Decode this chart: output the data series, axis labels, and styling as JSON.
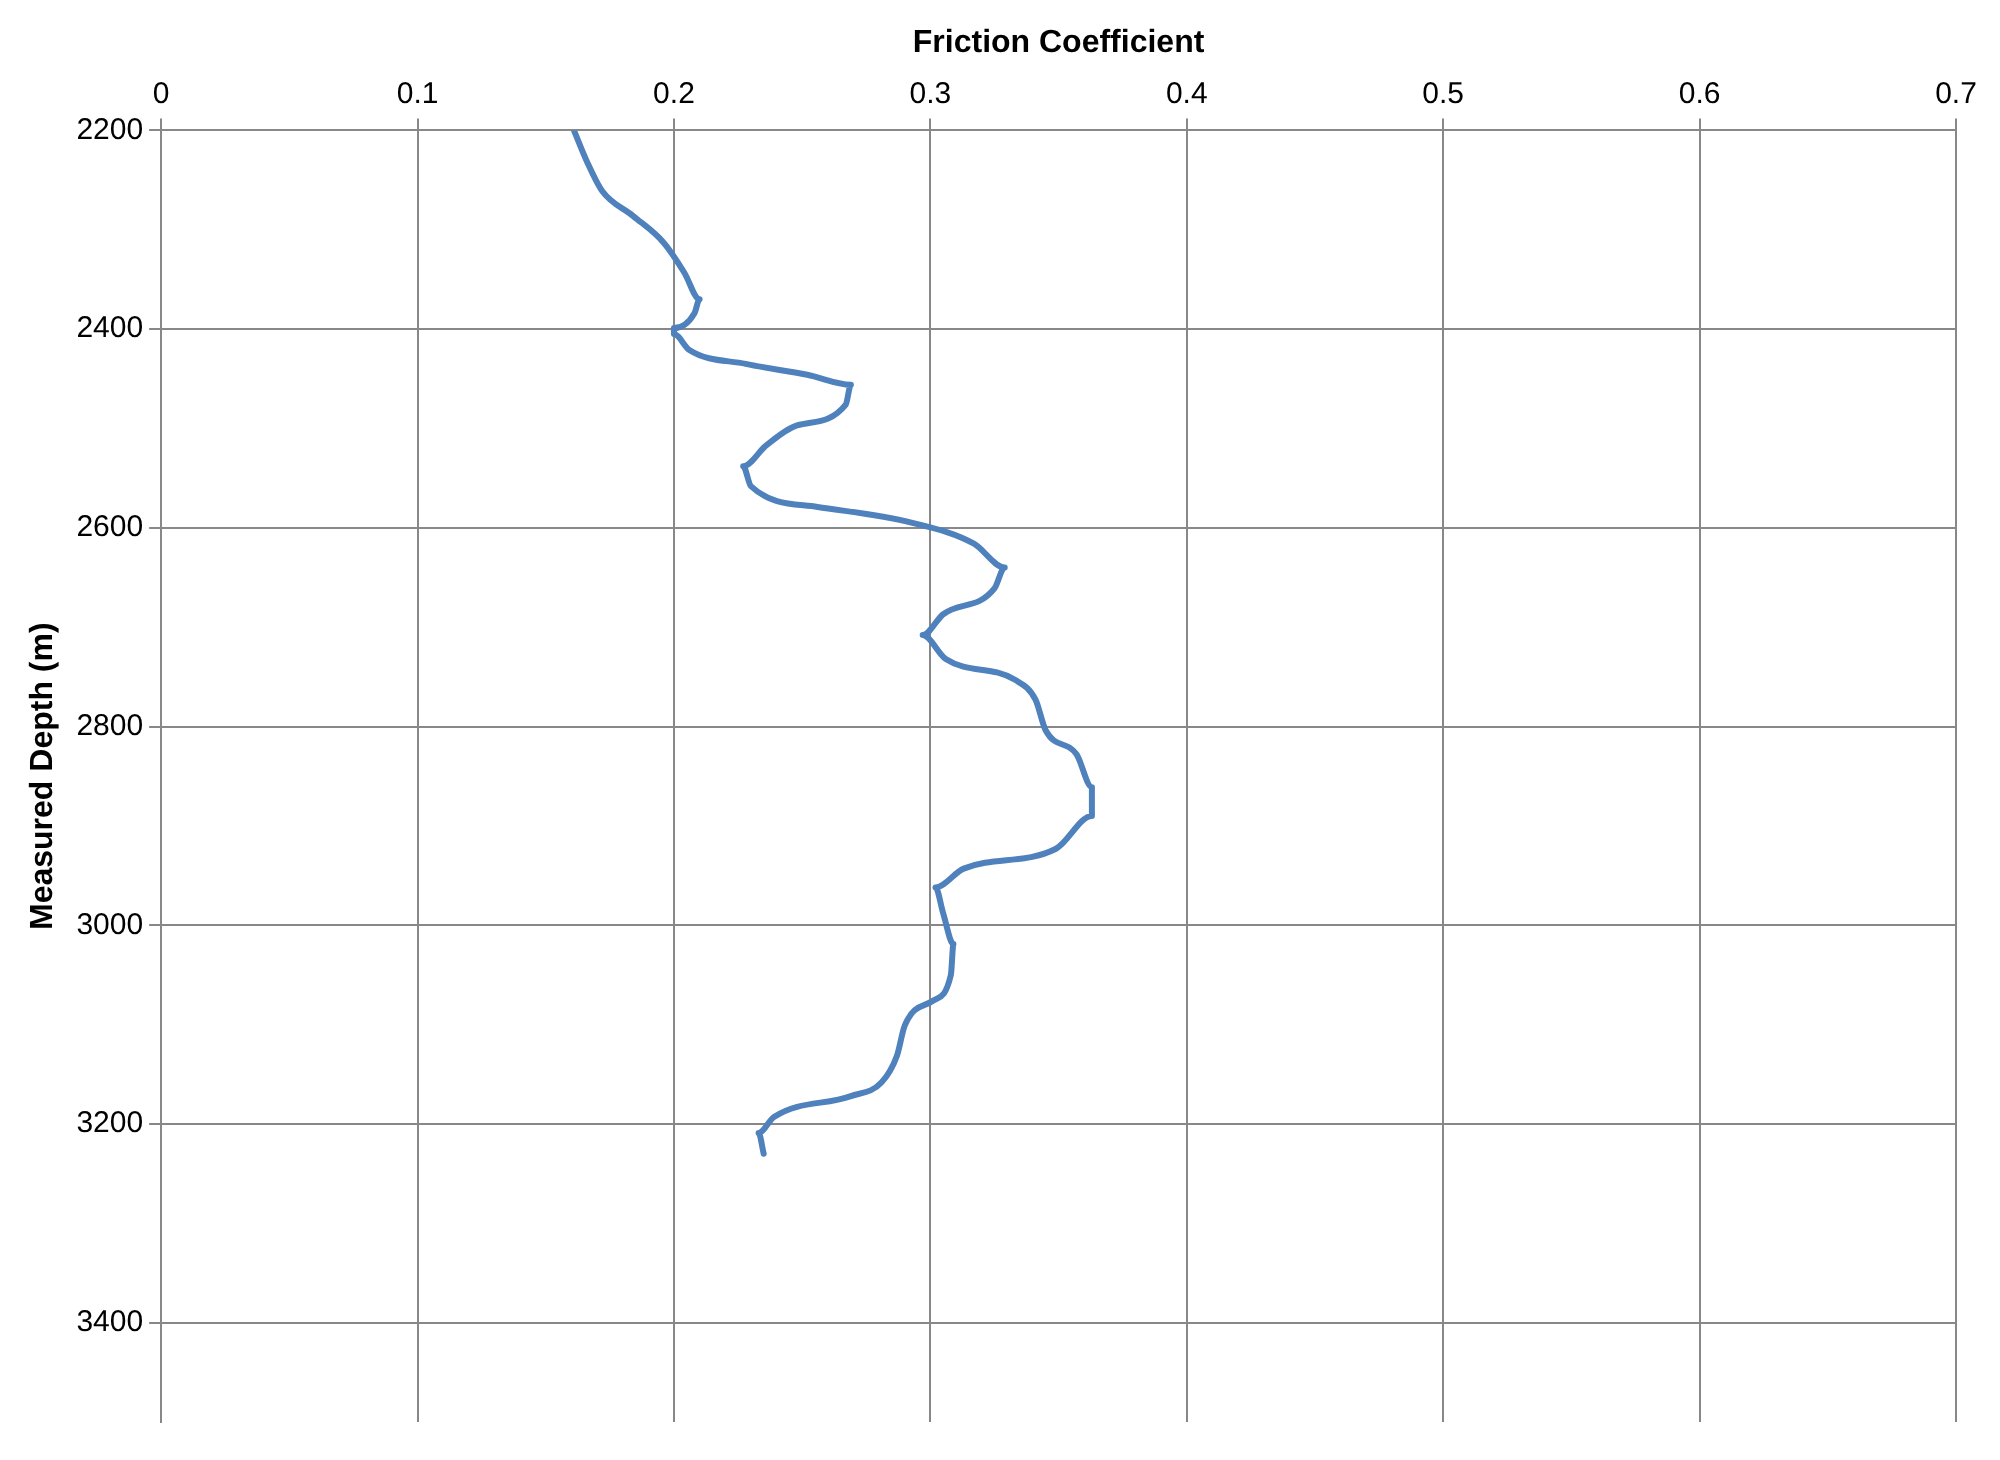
{
  "chart_data": {
    "type": "line",
    "xlabel": "Friction Coefficient",
    "ylabel": "Measured Depth (m)",
    "xlim": [
      0,
      0.7
    ],
    "xticks": [
      0,
      0.1,
      0.2,
      0.3,
      0.4,
      0.5,
      0.6,
      0.7
    ],
    "ylim": [
      3500,
      2200
    ],
    "yticks": [
      2200,
      2400,
      2600,
      2800,
      3000,
      3200,
      3400
    ],
    "grid": true,
    "legend": false,
    "marker": "none",
    "line_style": "solid",
    "series": [
      {
        "color": "#4f81bd",
        "x": [
          0.161,
          0.166,
          0.172,
          0.184,
          0.196,
          0.204,
          0.21,
          0.208,
          0.2,
          0.2,
          0.206,
          0.228,
          0.252,
          0.269,
          0.267,
          0.248,
          0.236,
          0.227,
          0.23,
          0.256,
          0.293,
          0.317,
          0.329,
          0.325,
          0.305,
          0.297,
          0.306,
          0.333,
          0.341,
          0.345,
          0.357,
          0.363,
          0.363,
          0.349,
          0.313,
          0.302,
          0.305,
          0.309,
          0.308,
          0.301,
          0.29,
          0.287,
          0.281,
          0.269,
          0.239,
          0.233,
          0.235
        ],
        "values": [
          2200,
          2231,
          2261,
          2286,
          2313,
          2343,
          2370,
          2384,
          2399,
          2405,
          2421,
          2435,
          2446,
          2456,
          2476,
          2497,
          2517,
          2538,
          2558,
          2579,
          2595,
          2616,
          2640,
          2661,
          2687,
          2708,
          2732,
          2753,
          2773,
          2804,
          2828,
          2861,
          2890,
          2923,
          2943,
          2962,
          2988,
          3019,
          3050,
          3076,
          3101,
          3131,
          3158,
          3172,
          3193,
          3209,
          3230
        ]
      }
    ]
  }
}
